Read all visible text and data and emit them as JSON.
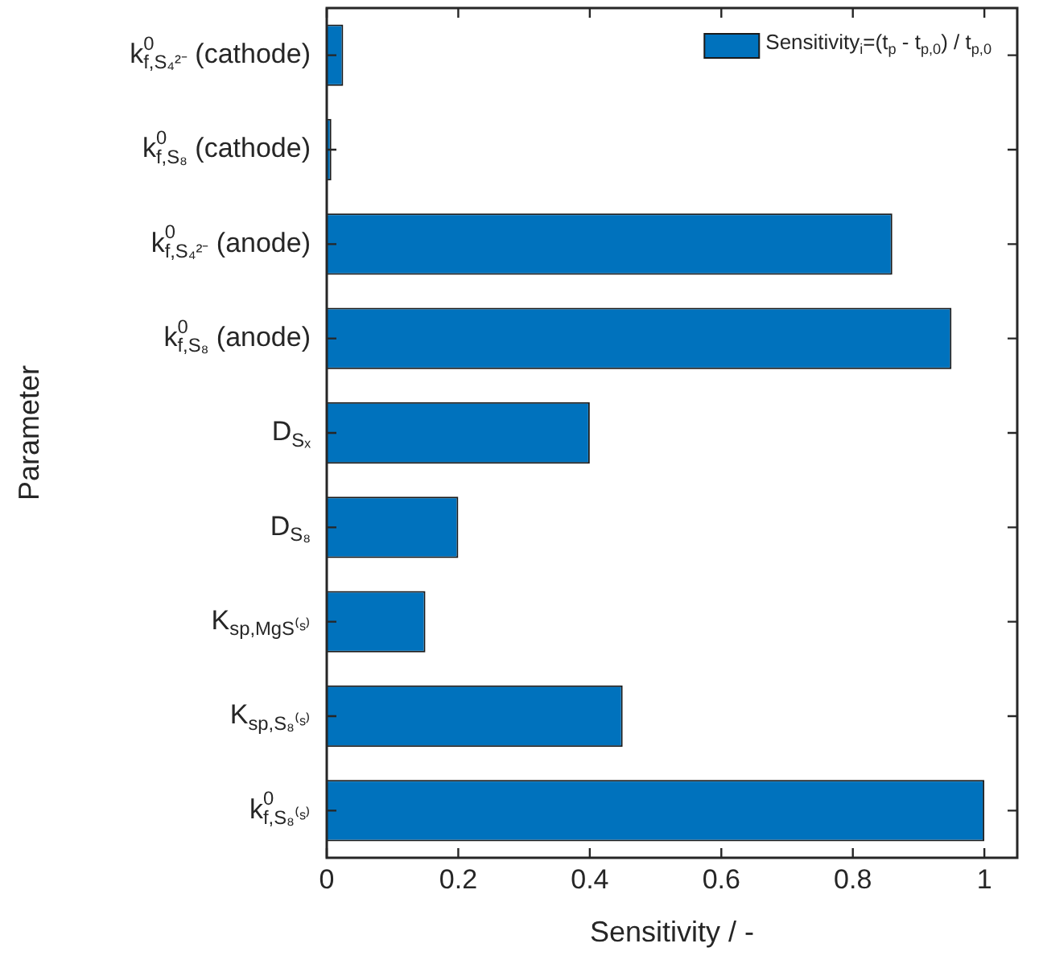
{
  "chart_data": {
    "type": "bar",
    "orientation": "horizontal",
    "xlabel": "Sensitivity / -",
    "ylabel": "Parameter",
    "categories": [
      "k$^{0}$$_{f,S₄²⁻}$ (cathode)",
      "k$^{0}$$_{f,S₈}$ (cathode)",
      "k$^{0}$$_{f,S₄²⁻}$ (anode)",
      "k$^{0}$$_{f,S₈}$ (anode)",
      "D$_{Sₓ}$",
      "D$_{S₈}$",
      "K$_{sp,MgS⁽ˢ⁾}$",
      "K$_{sp,S₈⁽ˢ⁾}$",
      "k$^{0}$$_{f,S₈⁽ˢ⁾}$"
    ],
    "series": [
      {
        "name": "Sensitivity$_{i}$=(t$_{p}$ - t$_{p,0}$) / t$_{p,0}$",
        "color": "#0072bd",
        "values": [
          0.025,
          0.007,
          0.86,
          0.95,
          0.4,
          0.2,
          0.15,
          0.45,
          1.0
        ]
      }
    ],
    "xlim": [
      0,
      1.05
    ],
    "xticks": [
      0,
      {
        "value": 0.2,
        "label": "0.2"
      },
      {
        "value": 0.4,
        "label": "0.4"
      },
      {
        "value": 0.6,
        "label": "0.6"
      },
      {
        "value": 0.8,
        "label": "0.8"
      },
      1
    ],
    "grid": false,
    "legend": "top right"
  }
}
